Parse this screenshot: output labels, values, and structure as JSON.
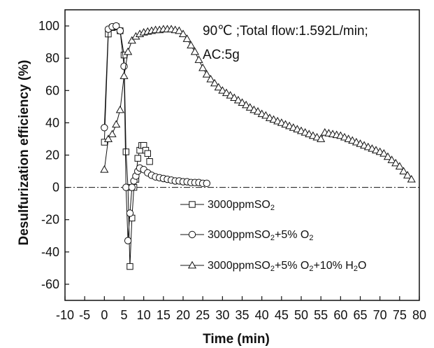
{
  "chart_data": {
    "type": "line",
    "title": "",
    "xlabel": "Time (min)",
    "ylabel": "Desulfurization efficiency (%)",
    "xlim": [
      -10,
      80
    ],
    "ylim": [
      -70,
      110
    ],
    "xticks": [
      -10,
      -5,
      0,
      5,
      10,
      15,
      20,
      25,
      30,
      35,
      40,
      45,
      50,
      55,
      60,
      65,
      70,
      75,
      80
    ],
    "yticks": [
      -60,
      -40,
      -20,
      0,
      20,
      40,
      60,
      80,
      100
    ],
    "xtick_labels": [
      "-10",
      "-5",
      "0",
      "5",
      "10",
      "15",
      "20",
      "25",
      "30",
      "35",
      "40",
      "45",
      "50",
      "55",
      "60",
      "65",
      "70",
      "75",
      "80"
    ],
    "ytick_labels": [
      "-60",
      "-40",
      "-20",
      "0",
      "20",
      "40",
      "60",
      "80",
      "100"
    ],
    "annotation_lines": [
      "90℃ ;Total flow:1.592L/min;",
      "AC:5g"
    ],
    "zero_line": true,
    "grid": false,
    "legend_position": "bottom-right",
    "series": [
      {
        "name": "3000ppmSO2",
        "legend_main": "3000ppmSO",
        "legend_sub": "2",
        "legend_rest": [],
        "marker": "square",
        "x": [
          0,
          1,
          2,
          3,
          4,
          5,
          5.5,
          6,
          6.5,
          7,
          7.5,
          8,
          8.5,
          9,
          9.5,
          10,
          10.5,
          11,
          11.5
        ],
        "y": [
          28,
          95,
          99,
          99.5,
          97,
          82,
          22,
          0,
          -49,
          -19,
          0,
          5,
          18,
          23,
          26,
          26,
          23,
          21,
          16
        ]
      },
      {
        "name": "3000ppmSO2+5% O2",
        "legend_main": "3000ppmSO",
        "legend_sub": "2",
        "legend_rest": [
          "+5% O",
          "2",
          ""
        ],
        "marker": "circle",
        "x": [
          0,
          1,
          2,
          3,
          4,
          5,
          5.5,
          6,
          6.5,
          7,
          7.5,
          8,
          8.5,
          9,
          10,
          11,
          12,
          13,
          14,
          15,
          16,
          17,
          18,
          19,
          20,
          21,
          22,
          23,
          24,
          25,
          26
        ],
        "y": [
          37,
          98,
          99.5,
          100,
          97,
          75,
          0,
          -33,
          -16,
          0,
          4,
          7,
          10,
          12,
          11,
          9,
          7.5,
          6.5,
          6,
          5.5,
          5,
          4.5,
          4,
          4,
          3.5,
          3.5,
          3,
          3,
          3,
          2.5,
          2.5
        ]
      },
      {
        "name": "3000ppmSO2+5% O2+10% H2O",
        "legend_main": "3000ppmSO",
        "legend_sub": "2",
        "legend_rest": [
          "+5% O",
          "2",
          "+10% H",
          "2",
          "O"
        ],
        "marker": "triangle",
        "x": [
          0,
          1,
          2,
          3,
          4,
          5,
          6,
          7,
          8,
          9,
          10,
          11,
          12,
          13,
          14,
          15,
          16,
          17,
          18,
          19,
          20,
          21,
          22,
          23,
          24,
          25,
          26,
          27,
          28,
          29,
          30,
          31,
          32,
          33,
          34,
          35,
          36,
          37,
          38,
          39,
          40,
          41,
          42,
          43,
          44,
          45,
          46,
          47,
          48,
          49,
          50,
          51,
          52,
          53,
          54,
          55,
          56,
          57,
          58,
          59,
          60,
          61,
          62,
          63,
          64,
          65,
          66,
          67,
          68,
          69,
          70,
          71,
          72,
          73,
          74,
          75,
          76,
          77,
          78
        ],
        "y": [
          11,
          30,
          33,
          39,
          48,
          69,
          84,
          91,
          93.5,
          95,
          96,
          96.5,
          97,
          97.5,
          97.5,
          98,
          98,
          98,
          97.5,
          97,
          95,
          92,
          88,
          84,
          79,
          74,
          70,
          67,
          64.5,
          62,
          60,
          58.5,
          57,
          55.5,
          54,
          52.5,
          51,
          49.5,
          48,
          47,
          45.5,
          44.5,
          43,
          42,
          41,
          40,
          39,
          38,
          37,
          36,
          35,
          34,
          33,
          32,
          31,
          30,
          34,
          33.5,
          33,
          32.5,
          32,
          31,
          30,
          29,
          28,
          27,
          26,
          25,
          24,
          23,
          22,
          21,
          19,
          17,
          15,
          13,
          10,
          7.5,
          5
        ]
      }
    ]
  }
}
